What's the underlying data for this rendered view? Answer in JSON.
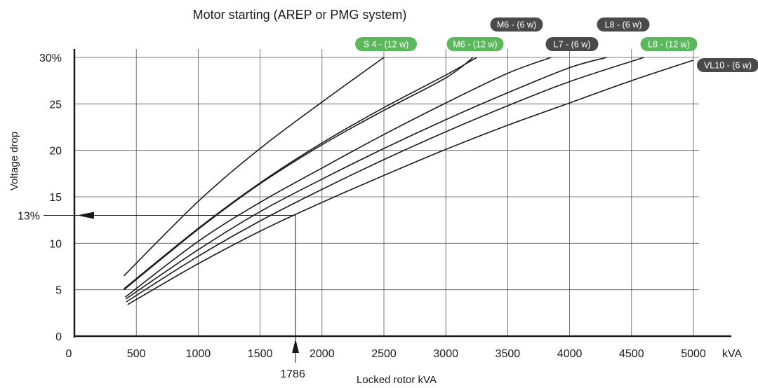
{
  "chart_data": {
    "type": "line",
    "title": "Motor starting (AREP or PMG system)",
    "xlabel": "Locked rotor kVA",
    "ylabel": "Voltage drop",
    "x_unit": "kVA",
    "xlim": [
      0,
      5000
    ],
    "ylim": [
      0,
      30
    ],
    "x_ticks": [
      {
        "value": 0,
        "label": "0"
      },
      {
        "value": 500,
        "label": "500"
      },
      {
        "value": 1000,
        "label": "1000"
      },
      {
        "value": 1500,
        "label": "1500"
      },
      {
        "value": 2000,
        "label": "2000"
      },
      {
        "value": 2500,
        "label": "2500"
      },
      {
        "value": 3000,
        "label": "3000"
      },
      {
        "value": 3500,
        "label": "3500"
      },
      {
        "value": 4000,
        "label": "4000"
      },
      {
        "value": 4500,
        "label": "4500"
      },
      {
        "value": 5000,
        "label": "5000"
      }
    ],
    "y_ticks": [
      {
        "value": 0,
        "label": "0"
      },
      {
        "value": 5,
        "label": "5"
      },
      {
        "value": 10,
        "label": "10"
      },
      {
        "value": 15,
        "label": "15"
      },
      {
        "value": 20,
        "label": "20"
      },
      {
        "value": 25,
        "label": "25"
      },
      {
        "value": 30,
        "label": "30%"
      }
    ],
    "grid": true,
    "series": [
      {
        "name": "S 4 - (12 w)",
        "color": "#5cb85c",
        "points": [
          [
            400,
            6.5
          ],
          [
            1000,
            14.5
          ],
          [
            1500,
            20.2
          ],
          [
            2000,
            25.2
          ],
          [
            2500,
            30
          ]
        ]
      },
      {
        "name": "M6 - (6 w)",
        "color": "#4a4a4a",
        "points": [
          [
            400,
            5.1
          ],
          [
            1000,
            11.6
          ],
          [
            1500,
            16.5
          ],
          [
            2000,
            20.8
          ],
          [
            2500,
            24.6
          ],
          [
            3000,
            28.1
          ],
          [
            3250,
            30
          ]
        ]
      },
      {
        "name": "M6 - (12 w)",
        "color": "#5cb85c",
        "points": [
          [
            400,
            5.0
          ],
          [
            1000,
            11.5
          ],
          [
            1500,
            16.4
          ],
          [
            2000,
            20.6
          ],
          [
            2500,
            24.3
          ],
          [
            3000,
            27.8
          ],
          [
            3220,
            30
          ]
        ]
      },
      {
        "name": "L7 - (6 w)",
        "color": "#4a4a4a",
        "points": [
          [
            410,
            4.2
          ],
          [
            1000,
            10.2
          ],
          [
            1500,
            14.4
          ],
          [
            2000,
            18.1
          ],
          [
            2500,
            21.7
          ],
          [
            3000,
            25.1
          ],
          [
            3500,
            28.3
          ],
          [
            3850,
            30
          ]
        ]
      },
      {
        "name": "L8 - (6 w)",
        "color": "#4a4a4a",
        "points": [
          [
            415,
            4.0
          ],
          [
            1000,
            9.3
          ],
          [
            1500,
            13.4
          ],
          [
            2000,
            16.9
          ],
          [
            2500,
            20.2
          ],
          [
            3000,
            23.3
          ],
          [
            3500,
            26.2
          ],
          [
            4000,
            28.9
          ],
          [
            4300,
            30
          ]
        ]
      },
      {
        "name": "L8 - (12 w)",
        "color": "#5cb85c",
        "points": [
          [
            420,
            3.7
          ],
          [
            1000,
            8.6
          ],
          [
            1500,
            12.4
          ],
          [
            2000,
            15.8
          ],
          [
            2500,
            19.0
          ],
          [
            3000,
            22.0
          ],
          [
            3500,
            24.8
          ],
          [
            4000,
            27.4
          ],
          [
            4600,
            30
          ]
        ]
      },
      {
        "name": "VL10 - (6 w)",
        "color": "#4a4a4a",
        "points": [
          [
            430,
            3.4
          ],
          [
            1000,
            7.8
          ],
          [
            1500,
            11.3
          ],
          [
            2000,
            14.4
          ],
          [
            2500,
            17.3
          ],
          [
            3000,
            20.1
          ],
          [
            3500,
            22.7
          ],
          [
            4000,
            25.1
          ],
          [
            4500,
            27.5
          ],
          [
            5000,
            29.7
          ]
        ]
      }
    ],
    "annotations": [
      {
        "text": "13%",
        "y": 13,
        "from_x": 1786
      },
      {
        "text": "1786",
        "x": 1786,
        "from_y": 13
      }
    ]
  }
}
